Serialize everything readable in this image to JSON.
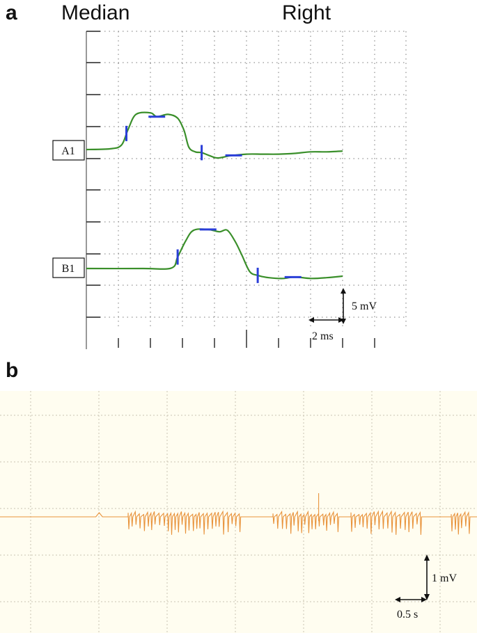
{
  "panel_a": {
    "letter": "a",
    "header_left": "Median",
    "header_right": "Right",
    "traces": [
      "A1",
      "B1"
    ],
    "scale_y": "5 mV",
    "scale_x": "2 ms"
  },
  "panel_b": {
    "letter": "b",
    "scale_y": "1 mV",
    "scale_x": "0.5 s",
    "background": "#fffdf0",
    "trace_color": "#e8923a"
  },
  "colors": {
    "trace_a": "#3a8f2a",
    "marker": "#2a3ed8",
    "grid": "#777777"
  },
  "chart_data": [
    {
      "type": "line",
      "title": "",
      "xlabel": "",
      "ylabel": "",
      "x_unit": "ms",
      "y_unit": "mV",
      "series": [
        {
          "name": "A1",
          "x": [
            0,
            1.5,
            2.2,
            2.6,
            3.1,
            4.0,
            4.4,
            5.1,
            5.7,
            6.1,
            6.4,
            6.8,
            7.2,
            7.7,
            8.2,
            9.0,
            10.0,
            11.0,
            12.0,
            13.0,
            14.0,
            15.0,
            16.0
          ],
          "y": [
            0,
            0.1,
            0.6,
            2.6,
            4.6,
            4.8,
            4.3,
            4.6,
            4.1,
            2.5,
            0.3,
            -0.3,
            -0.4,
            -0.8,
            -1.1,
            -0.8,
            -0.6,
            -0.6,
            -0.6,
            -0.5,
            -0.3,
            -0.3,
            -0.2
          ]
        },
        {
          "name": "B1",
          "x": [
            0,
            3.5,
            5.3,
            5.7,
            6.2,
            6.7,
            7.6,
            8.3,
            8.8,
            9.3,
            9.7,
            10.2,
            10.7,
            11.4,
            12.3,
            13.0,
            14.0,
            15.0,
            16.0
          ],
          "y": [
            0,
            0,
            0.05,
            1.5,
            3.6,
            5.0,
            5.1,
            4.8,
            5.0,
            3.5,
            1.8,
            -0.4,
            -0.9,
            -1.2,
            -1.3,
            -1.1,
            -1.3,
            -1.2,
            -1.0
          ]
        }
      ],
      "markers": [
        {
          "series": "A1",
          "kind": "onset",
          "x": 2.5
        },
        {
          "series": "A1",
          "kind": "peak",
          "x": 4.4
        },
        {
          "series": "A1",
          "kind": "end",
          "x": 7.2
        },
        {
          "series": "A1",
          "kind": "trough",
          "x": 9.2
        },
        {
          "series": "B1",
          "kind": "onset",
          "x": 5.7
        },
        {
          "series": "B1",
          "kind": "peak",
          "x": 7.6
        },
        {
          "series": "B1",
          "kind": "end",
          "x": 10.7
        },
        {
          "series": "B1",
          "kind": "trough",
          "x": 12.9
        }
      ],
      "grid": true
    },
    {
      "type": "line",
      "title": "",
      "xlabel": "",
      "ylabel": "",
      "x_unit": "s",
      "y_unit": "mV",
      "grid": true,
      "burst_intervals_s": [
        [
          2.3,
          4.3
        ],
        [
          4.9,
          6.1
        ],
        [
          6.3,
          7.6
        ],
        [
          8.1,
          8.45
        ]
      ]
    }
  ]
}
